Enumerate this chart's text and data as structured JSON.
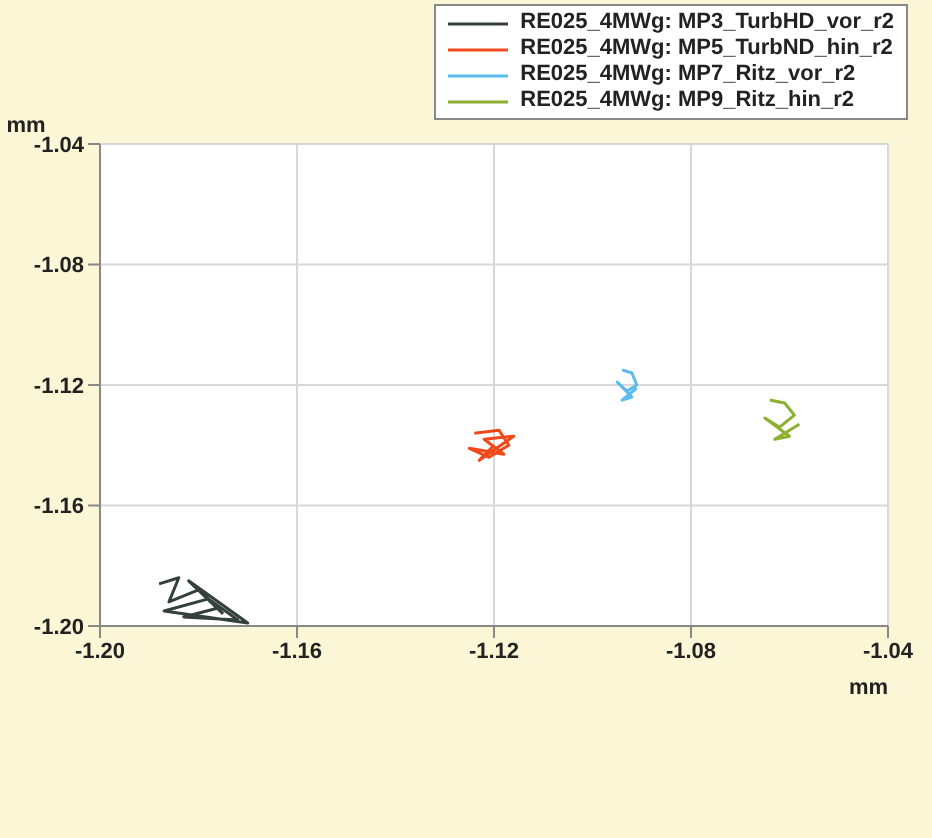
{
  "chart_data": {
    "type": "line",
    "xlabel": "mm",
    "ylabel": "mm",
    "marker": "none",
    "grid": true,
    "legend": "top right",
    "xlim": [
      -1.2,
      -1.04
    ],
    "ylim": [
      -1.2,
      -1.04
    ],
    "xticks": [
      {
        "value": -1.2,
        "label": "-1.20"
      },
      {
        "value": -1.16,
        "label": "-1.16"
      },
      {
        "value": -1.12,
        "label": "-1.12"
      },
      {
        "value": -1.08,
        "label": "-1.08"
      },
      {
        "value": -1.04,
        "label": "-1.04"
      }
    ],
    "yticks": [
      {
        "value": -1.2,
        "label": "-1.20"
      },
      {
        "value": -1.16,
        "label": "-1.16"
      },
      {
        "value": -1.12,
        "label": "-1.12"
      },
      {
        "value": -1.08,
        "label": "-1.08"
      },
      {
        "value": -1.04,
        "label": "-1.04"
      }
    ],
    "series": [
      {
        "name": "RE025_4MWg: MP3_TurbHD_vor_r2",
        "color": "#34403e",
        "x": [
          -1.188,
          -1.184,
          -1.186,
          -1.18,
          -1.176,
          -1.183,
          -1.172,
          -1.178,
          -1.187,
          -1.17,
          -1.182,
          -1.175
        ],
        "values": [
          -1.186,
          -1.184,
          -1.192,
          -1.188,
          -1.194,
          -1.197,
          -1.198,
          -1.191,
          -1.195,
          -1.199,
          -1.185,
          -1.196
        ]
      },
      {
        "name": "RE025_4MWg: MP5_TurbND_hin_r2",
        "color": "#f04a1c",
        "x": [
          -1.124,
          -1.119,
          -1.117,
          -1.121,
          -1.125,
          -1.118,
          -1.122,
          -1.116,
          -1.123,
          -1.12
        ],
        "values": [
          -1.136,
          -1.135,
          -1.14,
          -1.144,
          -1.141,
          -1.143,
          -1.138,
          -1.137,
          -1.145,
          -1.14
        ]
      },
      {
        "name": "RE025_4MWg: MP7_Ritz_vor_r2",
        "color": "#5bbcec",
        "x": [
          -1.094,
          -1.092,
          -1.091,
          -1.093,
          -1.095,
          -1.092,
          -1.094,
          -1.091
        ],
        "values": [
          -1.115,
          -1.116,
          -1.12,
          -1.122,
          -1.119,
          -1.124,
          -1.125,
          -1.121
        ]
      },
      {
        "name": "RE025_4MWg: MP9_Ritz_hin_r2",
        "color": "#8cb032",
        "x": [
          -1.064,
          -1.061,
          -1.059,
          -1.062,
          -1.065,
          -1.06,
          -1.063,
          -1.058
        ],
        "values": [
          -1.125,
          -1.126,
          -1.13,
          -1.134,
          -1.131,
          -1.137,
          -1.138,
          -1.133
        ]
      }
    ]
  }
}
